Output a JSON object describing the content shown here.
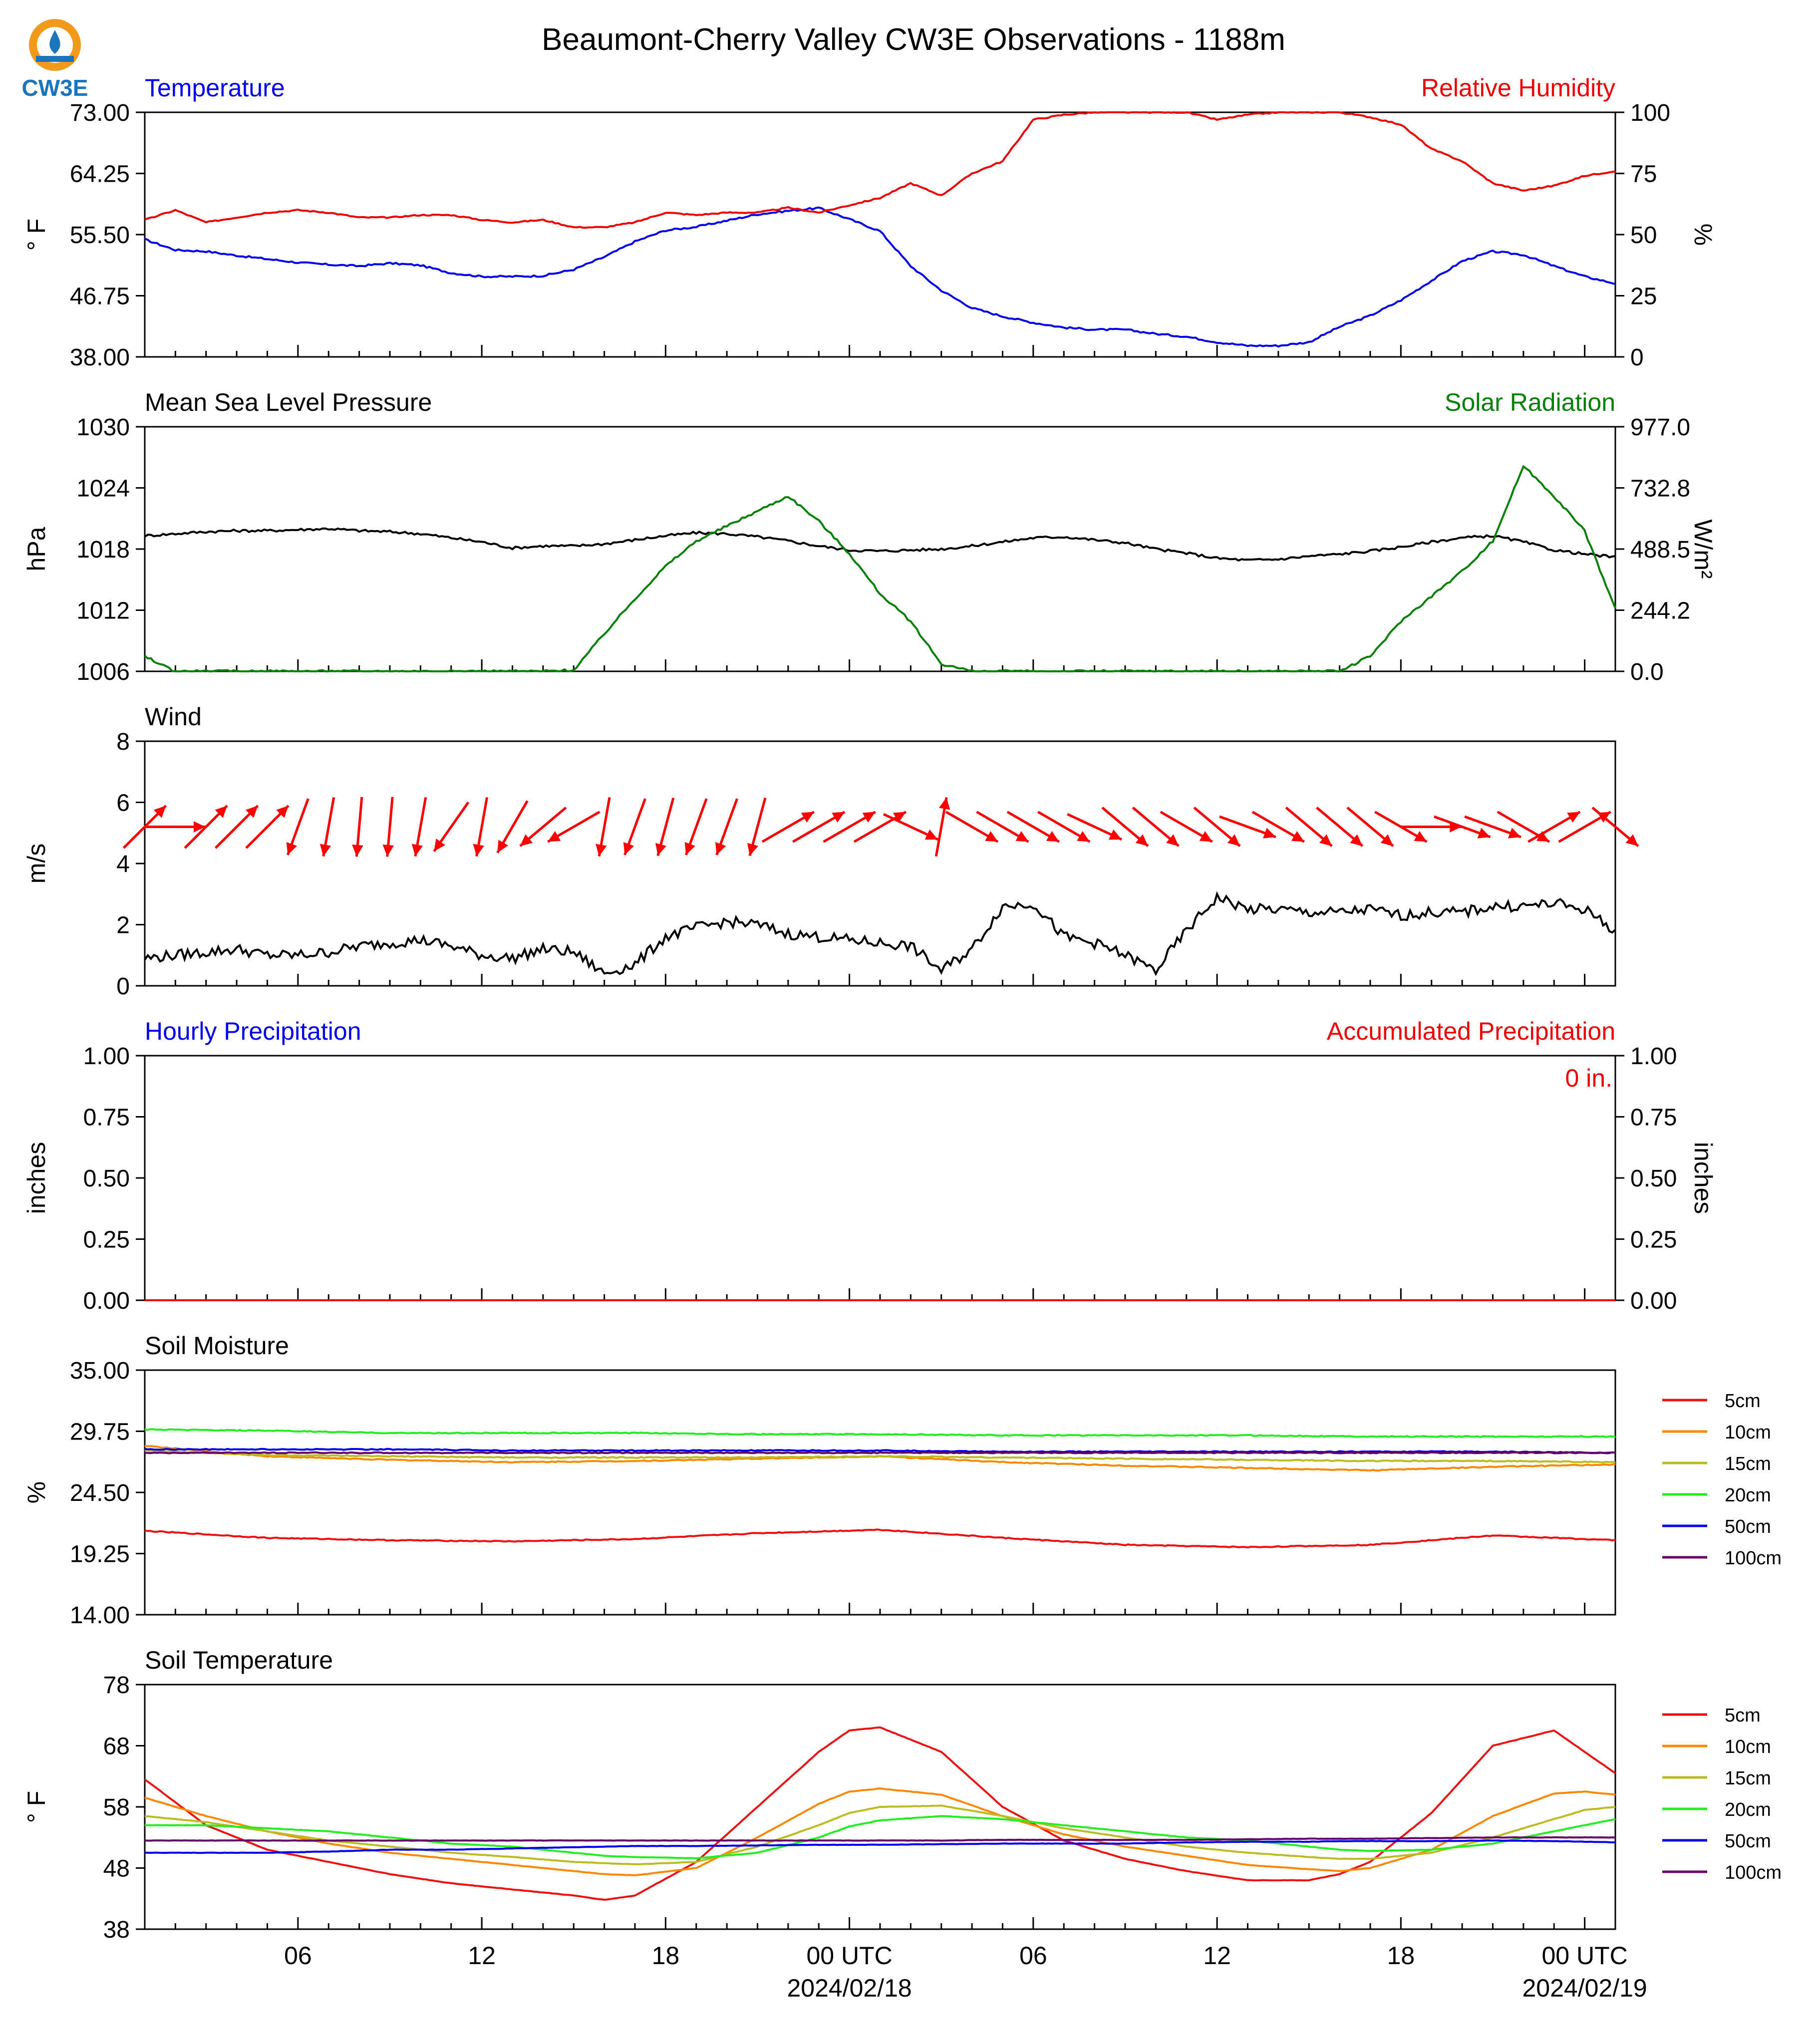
{
  "title": "Beaumont-Cherry Valley CW3E Observations - 1188m",
  "logo": {
    "text": "CW3E",
    "color_outer": "#f29a1c",
    "color_inner": "#1b75bc"
  },
  "x_axis": {
    "tick_labels": [
      "06",
      "12",
      "18",
      "00 UTC",
      "06",
      "12",
      "18",
      "00 UTC"
    ],
    "date_labels": [
      "2024/02/18",
      "2024/02/19"
    ]
  },
  "chart_data": [
    {
      "id": "temp_rh",
      "type": "line",
      "title_left": "Temperature",
      "title_right": "Relative Humidity",
      "ylabel_left": "° F",
      "ylabel_right": "%",
      "ylim_left": [
        38,
        73
      ],
      "ylim_right": [
        0,
        100
      ],
      "yticks_left": [
        "73.00",
        "64.25",
        "55.50",
        "46.75",
        "38.00"
      ],
      "yticks_right": [
        "100",
        "75",
        "50",
        "25",
        "0"
      ],
      "title_left_color": "#0000ee",
      "title_right_color": "#ee0000",
      "x_hours": [
        0,
        1,
        2,
        3,
        4,
        5,
        6,
        7,
        8,
        9,
        10,
        11,
        12,
        13,
        14,
        15,
        16,
        17,
        18,
        19,
        20,
        21,
        22,
        23,
        24,
        25,
        26,
        27,
        28,
        29,
        30,
        31,
        32,
        33,
        34,
        35,
        36,
        37,
        38,
        39,
        40,
        41,
        42,
        43,
        44,
        45,
        46,
        47,
        48
      ],
      "series": [
        {
          "name": "Temperature",
          "axis": "left",
          "color": "#0000ee",
          "values": [
            54.8,
            53.3,
            53.1,
            52.5,
            52,
            51.5,
            51.2,
            51,
            51.4,
            51.1,
            50,
            49.5,
            49.5,
            49.6,
            50.5,
            52.3,
            54.5,
            56.1,
            56.6,
            57.5,
            58.4,
            58.9,
            59.3,
            57.7,
            56,
            51,
            47.5,
            45,
            43.8,
            42.9,
            42.2,
            41.9,
            41.9,
            41.3,
            40.9,
            40.1,
            39.6,
            39.6,
            40.1,
            42.3,
            43.9,
            46.1,
            48.9,
            51.7,
            53.1,
            52.6,
            51,
            49.5,
            48.5
          ]
        },
        {
          "name": "Relative Humidity",
          "axis": "right",
          "color": "#ee0000",
          "values": [
            56,
            60,
            55,
            57,
            59,
            60,
            59,
            57,
            57,
            58,
            58,
            56,
            55,
            56,
            53,
            53,
            55,
            59,
            58,
            59,
            59,
            61,
            59,
            62,
            65,
            71,
            66,
            75,
            80,
            97,
            99,
            100,
            100,
            100,
            100,
            97,
            99,
            100,
            100,
            100,
            98,
            95,
            85,
            80,
            71,
            68,
            70,
            74,
            76
          ]
        }
      ]
    },
    {
      "id": "pressure_solar",
      "type": "line",
      "title_left": "Mean Sea Level Pressure",
      "title_right": "Solar Radiation",
      "ylabel_left": "hPa",
      "ylabel_right": "W/m²",
      "ylim_left": [
        1006,
        1030
      ],
      "ylim_right": [
        0,
        977
      ],
      "yticks_left": [
        "1030",
        "1024",
        "1018",
        "1012",
        "1006"
      ],
      "yticks_right": [
        "977.0",
        "732.8",
        "488.5",
        "244.2",
        "0.0"
      ],
      "title_left_color": "#000000",
      "title_right_color": "#008000",
      "x_hours": [
        0,
        1,
        2,
        3,
        4,
        5,
        6,
        7,
        8,
        9,
        10,
        11,
        12,
        13,
        14,
        15,
        16,
        17,
        18,
        19,
        20,
        21,
        22,
        23,
        24,
        25,
        26,
        27,
        28,
        29,
        30,
        31,
        32,
        33,
        34,
        35,
        36,
        37,
        38,
        39,
        40,
        41,
        42,
        43,
        44,
        45,
        46,
        47,
        48
      ],
      "series": [
        {
          "name": "Mean Sea Level Pressure",
          "axis": "left",
          "color": "#000000",
          "values": [
            1019.3,
            1019.5,
            1019.7,
            1019.8,
            1019.8,
            1019.9,
            1020,
            1019.8,
            1019.7,
            1019.5,
            1019.1,
            1018.7,
            1018.1,
            1018.3,
            1018.3,
            1018.5,
            1018.9,
            1019.3,
            1019.6,
            1019.5,
            1019.2,
            1018.8,
            1018.3,
            1017.9,
            1017.8,
            1017.9,
            1018,
            1018.3,
            1018.7,
            1019.1,
            1019.2,
            1018.9,
            1018.6,
            1018,
            1017.6,
            1017.1,
            1016.9,
            1017,
            1017.3,
            1017.5,
            1017.8,
            1018.2,
            1018.7,
            1019.1,
            1019.3,
            1018.7,
            1017.9,
            1017.5,
            1017.2
          ]
        },
        {
          "name": "Solar Radiation",
          "axis": "right",
          "color": "#008000",
          "values": [
            60,
            0,
            0,
            0,
            0,
            0,
            0,
            0,
            0,
            0,
            0,
            0,
            0,
            0,
            5,
            150,
            290,
            420,
            520,
            580,
            640,
            700,
            600,
            470,
            310,
            200,
            30,
            0,
            0,
            0,
            0,
            0,
            0,
            0,
            0,
            0,
            0,
            0,
            0,
            0,
            60,
            200,
            300,
            400,
            520,
            820,
            700,
            560,
            250
          ]
        }
      ]
    },
    {
      "id": "wind",
      "type": "line",
      "title_left": "Wind",
      "ylabel_left": "m/s",
      "ylim_left": [
        0,
        8
      ],
      "yticks_left": [
        "8",
        "6",
        "4",
        "2",
        "0"
      ],
      "title_left_color": "#000000",
      "x_hours": [
        0,
        1,
        2,
        3,
        4,
        5,
        6,
        7,
        8,
        9,
        10,
        11,
        12,
        13,
        14,
        15,
        16,
        17,
        18,
        19,
        20,
        21,
        22,
        23,
        24,
        25,
        26,
        27,
        28,
        29,
        30,
        31,
        32,
        33,
        34,
        35,
        36,
        37,
        38,
        39,
        40,
        41,
        42,
        43,
        44,
        45,
        46,
        47,
        48
      ],
      "series": [
        {
          "name": "Wind Speed",
          "axis": "left",
          "color": "#000000",
          "values": [
            0.9,
            1,
            1.1,
            1.2,
            1,
            1,
            1.1,
            1.3,
            1.4,
            1.5,
            1.3,
            1,
            0.9,
            1.2,
            1.1,
            0.4,
            0.7,
            1.6,
            1.9,
            2.1,
            2,
            1.7,
            1.6,
            1.5,
            1.4,
            1.3,
            0.5,
            1.2,
            2.6,
            2.7,
            1.6,
            1.4,
            1.0,
            0.5,
            1.8,
            2.9,
            2.5,
            2.5,
            2.4,
            2.4,
            2.5,
            2.3,
            2.4,
            2.4,
            2.6,
            2.6,
            2.7,
            2.5,
            1.8
          ]
        }
      ],
      "arrows": {
        "color": "#ff0000",
        "hours": [
          0,
          1,
          2,
          3,
          4,
          5,
          6,
          7,
          8,
          9,
          10,
          11,
          12,
          13,
          14,
          15,
          16,
          17,
          18,
          19,
          20,
          21,
          22,
          23,
          24,
          25,
          26,
          27,
          28,
          29,
          30,
          31,
          32,
          33,
          34,
          35,
          36,
          37,
          38,
          39,
          40,
          41,
          42,
          43,
          44,
          45,
          46,
          47,
          48
        ],
        "from_direction_deg": [
          225,
          270,
          225,
          225,
          225,
          20,
          10,
          5,
          5,
          10,
          35,
          10,
          30,
          50,
          60,
          10,
          20,
          15,
          20,
          20,
          15,
          240,
          240,
          240,
          240,
          295,
          190,
          300,
          300,
          300,
          300,
          295,
          310,
          310,
          300,
          310,
          290,
          300,
          310,
          310,
          310,
          300,
          270,
          290,
          290,
          300,
          240,
          240,
          310
        ],
        "speed": [
          0.9,
          1,
          1.1,
          1.2,
          1,
          1,
          1.1,
          1.3,
          1.4,
          1.5,
          1.3,
          1,
          0.9,
          1.2,
          1.1,
          0.4,
          0.7,
          1.6,
          1.9,
          2.1,
          2,
          1.7,
          1.6,
          1.5,
          1.4,
          1.3,
          0.5,
          1.2,
          2.6,
          2.7,
          1.6,
          1.4,
          1.0,
          0.5,
          1.8,
          2.9,
          2.5,
          2.5,
          2.4,
          2.4,
          2.5,
          2.3,
          2.4,
          2.4,
          2.6,
          2.6,
          2.7,
          2.5,
          1.8
        ]
      }
    },
    {
      "id": "precip",
      "type": "line",
      "title_left": "Hourly Precipitation",
      "title_right": "Accumulated Precipitation",
      "annotation": "0 in.",
      "ylabel_left": "inches",
      "ylabel_right": "inches",
      "ylim_left": [
        0,
        1
      ],
      "ylim_right": [
        0,
        1
      ],
      "yticks_left": [
        "1.00",
        "0.75",
        "0.50",
        "0.25",
        "0.00"
      ],
      "yticks_right": [
        "1.00",
        "0.75",
        "0.50",
        "0.25",
        "0.00"
      ],
      "title_left_color": "#0000ee",
      "title_right_color": "#ee0000",
      "x_hours": [
        0,
        48
      ],
      "series": [
        {
          "name": "Hourly Precipitation",
          "axis": "left",
          "color": "#0000ee",
          "values": [
            0,
            0
          ]
        },
        {
          "name": "Accumulated Precipitation",
          "axis": "right",
          "color": "#ee0000",
          "values": [
            0,
            0
          ]
        }
      ]
    },
    {
      "id": "soil_moisture",
      "type": "line",
      "title_left": "Soil Moisture",
      "ylabel_left": "%",
      "ylim_left": [
        14,
        35
      ],
      "yticks_left": [
        "35.00",
        "29.75",
        "24.50",
        "19.25",
        "14.00"
      ],
      "title_left_color": "#000000",
      "x_hours": [
        0,
        4,
        8,
        12,
        16,
        20,
        24,
        28,
        32,
        36,
        40,
        44,
        48
      ],
      "series": [
        {
          "name": "5cm",
          "color": "#ee1111",
          "values": [
            21.2,
            20.6,
            20.4,
            20.3,
            20.5,
            21,
            21.3,
            20.6,
            20,
            19.8,
            20,
            20.8,
            20.4
          ]
        },
        {
          "name": "10cm",
          "color": "#ff8800",
          "values": [
            28.5,
            27.6,
            27.3,
            27.1,
            27.2,
            27.4,
            27.6,
            27.1,
            26.8,
            26.6,
            26.4,
            26.7,
            26.9
          ]
        },
        {
          "name": "15cm",
          "color": "#bbbb22",
          "values": [
            28.1,
            27.7,
            27.6,
            27.5,
            27.5,
            27.5,
            27.6,
            27.5,
            27.4,
            27.3,
            27.2,
            27.2,
            27.1
          ]
        },
        {
          "name": "20cm",
          "color": "#22ee22",
          "values": [
            29.9,
            29.8,
            29.6,
            29.6,
            29.6,
            29.5,
            29.5,
            29.4,
            29.4,
            29.4,
            29.3,
            29.3,
            29.3
          ]
        },
        {
          "name": "50cm",
          "color": "#0000ee",
          "values": [
            28.2,
            28.2,
            28.2,
            28.1,
            28.1,
            28.1,
            28.1,
            28.0,
            28.0,
            28.0,
            28.0,
            28.0,
            27.9
          ]
        },
        {
          "name": "100cm",
          "color": "#660066",
          "values": [
            27.9,
            27.9,
            27.9,
            27.9,
            27.9,
            27.9,
            27.9,
            27.9,
            27.9,
            27.9,
            27.9,
            27.9,
            27.9
          ]
        }
      ],
      "legend": [
        "5cm",
        "10cm",
        "15cm",
        "20cm",
        "50cm",
        "100cm"
      ]
    },
    {
      "id": "soil_temp",
      "type": "line",
      "title_left": "Soil Temperature",
      "ylabel_left": "° F",
      "ylim_left": [
        38,
        78
      ],
      "yticks_left": [
        "78",
        "68",
        "58",
        "48",
        "38"
      ],
      "title_left_color": "#000000",
      "x_hours": [
        0,
        2,
        4,
        6,
        8,
        10,
        12,
        14,
        15,
        16,
        18,
        20,
        22,
        23,
        24,
        26,
        28,
        30,
        32,
        34,
        36,
        38,
        39,
        40,
        42,
        44,
        46,
        47,
        48
      ],
      "series": [
        {
          "name": "5cm",
          "color": "#ee1111",
          "values": [
            62.5,
            55,
            51,
            49,
            47,
            45.5,
            44.5,
            43.5,
            42.8,
            43.5,
            49,
            58,
            67,
            70.5,
            71,
            67,
            58,
            52.5,
            49.5,
            47.5,
            46,
            46,
            47,
            49,
            57,
            68,
            70.5,
            67,
            63.5
          ]
        },
        {
          "name": "10cm",
          "color": "#ff8800",
          "values": [
            59.5,
            56.5,
            54,
            52,
            50.5,
            49.5,
            48.5,
            47.5,
            47,
            46.8,
            48,
            53,
            58.5,
            60.5,
            61,
            60,
            56.5,
            53.5,
            51.5,
            50,
            48.5,
            47.8,
            47.5,
            48,
            51,
            56.5,
            60.2,
            60.5,
            60
          ]
        },
        {
          "name": "15cm",
          "color": "#bbbb22",
          "values": [
            56.5,
            55.5,
            54,
            52.5,
            51.5,
            50.5,
            49.8,
            49,
            48.8,
            48.6,
            49,
            51.5,
            55,
            57,
            58,
            58.2,
            56.5,
            54.5,
            53,
            51.5,
            50.5,
            49.8,
            49.5,
            49.5,
            50.5,
            53,
            56,
            57.5,
            58
          ]
        },
        {
          "name": "20cm",
          "color": "#22ee22",
          "values": [
            55,
            55,
            54.5,
            54,
            53,
            52,
            51.5,
            50.5,
            50,
            49.8,
            49.6,
            50.5,
            53,
            54.8,
            55.8,
            56.5,
            56,
            55,
            54,
            53,
            52.5,
            51.5,
            51,
            50.8,
            51,
            52,
            54,
            55,
            56
          ]
        },
        {
          "name": "50cm",
          "color": "#0000ee",
          "values": [
            50.5,
            50.5,
            50.5,
            50.7,
            51,
            51,
            51.2,
            51.4,
            51.5,
            51.6,
            51.6,
            51.7,
            51.8,
            51.8,
            51.8,
            51.9,
            52,
            52,
            52,
            52.2,
            52.3,
            52.3,
            52.4,
            52.4,
            52.4,
            52.5,
            52.4,
            52.3,
            52.2
          ]
        },
        {
          "name": "100cm",
          "color": "#660066",
          "values": [
            52.5,
            52.5,
            52.5,
            52.5,
            52.5,
            52.5,
            52.5,
            52.5,
            52.5,
            52.5,
            52.5,
            52.5,
            52.5,
            52.5,
            52.5,
            52.5,
            52.6,
            52.6,
            52.6,
            52.6,
            52.7,
            52.8,
            52.8,
            52.8,
            52.9,
            53,
            53,
            53,
            53
          ]
        }
      ],
      "legend": [
        "5cm",
        "10cm",
        "15cm",
        "20cm",
        "50cm",
        "100cm"
      ]
    }
  ]
}
